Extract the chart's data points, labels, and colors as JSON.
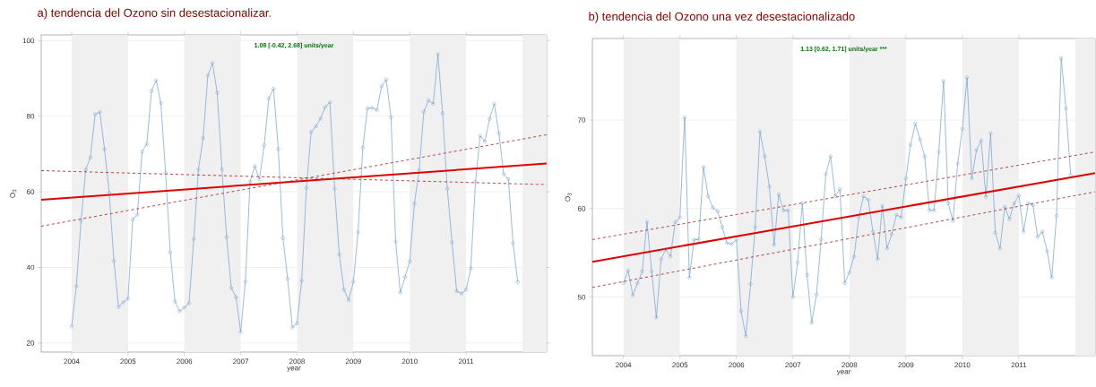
{
  "chart_data": [
    {
      "type": "line",
      "title": "a) tendencia del Ozono sin desestacionalizar.",
      "xlabel": "year",
      "ylabel": "O$_{3}$",
      "annotations": [
        "1.08 [-0.42, 2.68] units/year"
      ],
      "xlim": [
        2003.46,
        2012.43
      ],
      "ylim": [
        17.6,
        101.5
      ],
      "xticks": [
        2004,
        2005,
        2006,
        2007,
        2008,
        2009,
        2010,
        2011
      ],
      "yticks": [
        20,
        40,
        60,
        80,
        100
      ],
      "grid": "y",
      "bands": [
        {
          "axis": "x",
          "from": 2004,
          "to": 2005,
          "color": "#f0f0f0"
        },
        {
          "axis": "x",
          "from": 2006,
          "to": 2007,
          "color": "#f0f0f0"
        },
        {
          "axis": "x",
          "from": 2008,
          "to": 2009,
          "color": "#f0f0f0"
        },
        {
          "axis": "x",
          "from": 2010,
          "to": 2011,
          "color": "#f0f0f0"
        },
        {
          "axis": "x",
          "from": 2012,
          "to": 2012.43,
          "color": "#f0f0f0"
        }
      ],
      "series": [
        {
          "color": "#6f9fcf",
          "marker": "circle",
          "line_style": "solid",
          "x": [
            2004.0,
            2004.083,
            2004.167,
            2004.25,
            2004.333,
            2004.417,
            2004.5,
            2004.583,
            2004.667,
            2004.75,
            2004.833,
            2004.917,
            2005.0,
            2005.083,
            2005.167,
            2005.25,
            2005.333,
            2005.417,
            2005.5,
            2005.583,
            2005.667,
            2005.75,
            2005.833,
            2005.917,
            2006.0,
            2006.083,
            2006.167,
            2006.25,
            2006.333,
            2006.417,
            2006.5,
            2006.583,
            2006.667,
            2006.75,
            2006.833,
            2006.917,
            2007.0,
            2007.083,
            2007.167,
            2007.25,
            2007.333,
            2007.417,
            2007.5,
            2007.583,
            2007.667,
            2007.75,
            2007.833,
            2007.917,
            2008.0,
            2008.083,
            2008.167,
            2008.25,
            2008.333,
            2008.417,
            2008.5,
            2008.583,
            2008.667,
            2008.75,
            2008.833,
            2008.917,
            2009.0,
            2009.083,
            2009.167,
            2009.25,
            2009.333,
            2009.417,
            2009.5,
            2009.583,
            2009.667,
            2009.75,
            2009.833,
            2009.917,
            2010.0,
            2010.083,
            2010.167,
            2010.25,
            2010.333,
            2010.417,
            2010.5,
            2010.583,
            2010.667,
            2010.75,
            2010.833,
            2010.917,
            2011.0,
            2011.083,
            2011.167,
            2011.25,
            2011.333,
            2011.417,
            2011.5,
            2011.583,
            2011.667,
            2011.75,
            2011.833,
            2011.917
          ],
          "values": [
            24.4,
            35,
            52.3,
            65.9,
            69.1,
            80.5,
            81.1,
            71.3,
            59.7,
            41.7,
            29.5,
            30.8,
            31.7,
            52.7,
            54,
            70.6,
            72.6,
            86.7,
            89.5,
            83.5,
            65,
            44,
            31,
            28.4,
            29.4,
            30.5,
            47.5,
            65.9,
            74.2,
            90.8,
            94.1,
            86.2,
            66,
            48,
            34.6,
            32.1,
            22.9,
            36.2,
            62.7,
            66.8,
            63.3,
            72.3,
            84.7,
            87.3,
            71.3,
            47.8,
            37,
            24.1,
            25.2,
            36.5,
            61,
            75.8,
            77.3,
            79.4,
            82.4,
            83.7,
            60.8,
            43.4,
            34.1,
            31.3,
            36.2,
            49.3,
            71.7,
            82.1,
            82.2,
            81.6,
            87.9,
            89.7,
            79.7,
            46.8,
            33.3,
            37.5,
            41.6,
            56.9,
            65.7,
            81.2,
            84.2,
            83.3,
            96.4,
            80.8,
            60.8,
            46.6,
            33.7,
            33.1,
            34.1,
            39.7,
            62.7,
            74.8,
            73.3,
            79.3,
            83.3,
            75.5,
            64.7,
            63.4,
            46.4,
            36.1
          ]
        },
        {
          "color": "#e00000",
          "marker": "none",
          "line_style": "solid",
          "x": [
            2003.46,
            2012.43
          ],
          "values": [
            57.9,
            67.5
          ]
        },
        {
          "color": "#b03030",
          "marker": "none",
          "line_style": "dashed",
          "x": [
            2003.46,
            2012.43
          ],
          "values": [
            65.6,
            61.9
          ]
        },
        {
          "color": "#b03030",
          "marker": "none",
          "line_style": "dashed",
          "x": [
            2003.46,
            2012.43
          ],
          "values": [
            50.9,
            75.1
          ]
        }
      ]
    },
    {
      "type": "line",
      "title": "b) tendencia del Ozono una vez desestacionalizado",
      "xlabel": "year",
      "ylabel": "O$_{3}$",
      "annotations": [
        "1.13 [0.62, 1.71] units/year ***"
      ],
      "xlim": [
        2003.45,
        2012.35
      ],
      "ylim": [
        43.4,
        79.2
      ],
      "xticks": [
        2004,
        2005,
        2006,
        2007,
        2008,
        2009,
        2010,
        2011
      ],
      "yticks": [
        50,
        60,
        70
      ],
      "grid": "y",
      "bands": [
        {
          "axis": "x",
          "from": 2004,
          "to": 2005,
          "color": "#f0f0f0"
        },
        {
          "axis": "x",
          "from": 2006,
          "to": 2007,
          "color": "#f0f0f0"
        },
        {
          "axis": "x",
          "from": 2008,
          "to": 2009,
          "color": "#f0f0f0"
        },
        {
          "axis": "x",
          "from": 2010,
          "to": 2011,
          "color": "#f0f0f0"
        },
        {
          "axis": "x",
          "from": 2012,
          "to": 2012.35,
          "color": "#f0f0f0"
        }
      ],
      "series": [
        {
          "color": "#6f9fcf",
          "marker": "circle",
          "line_style": "solid",
          "x": [
            2004.0,
            2004.083,
            2004.167,
            2004.25,
            2004.333,
            2004.417,
            2004.5,
            2004.583,
            2004.667,
            2004.75,
            2004.833,
            2004.917,
            2005.0,
            2005.083,
            2005.167,
            2005.25,
            2005.333,
            2005.417,
            2005.5,
            2005.583,
            2005.667,
            2005.75,
            2005.833,
            2005.917,
            2006.0,
            2006.083,
            2006.167,
            2006.25,
            2006.333,
            2006.417,
            2006.5,
            2006.583,
            2006.667,
            2006.75,
            2006.833,
            2006.917,
            2007.0,
            2007.083,
            2007.167,
            2007.25,
            2007.333,
            2007.417,
            2007.5,
            2007.583,
            2007.667,
            2007.75,
            2007.833,
            2007.917,
            2008.0,
            2008.083,
            2008.167,
            2008.25,
            2008.333,
            2008.417,
            2008.5,
            2008.583,
            2008.667,
            2008.75,
            2008.833,
            2008.917,
            2009.0,
            2009.083,
            2009.167,
            2009.25,
            2009.333,
            2009.417,
            2009.5,
            2009.583,
            2009.667,
            2009.75,
            2009.833,
            2009.917,
            2010.0,
            2010.083,
            2010.167,
            2010.25,
            2010.333,
            2010.417,
            2010.5,
            2010.583,
            2010.667,
            2010.75,
            2010.833,
            2010.917,
            2011.0,
            2011.083,
            2011.167,
            2011.25,
            2011.333,
            2011.417,
            2011.5,
            2011.583,
            2011.667,
            2011.75,
            2011.833,
            2011.917
          ],
          "values": [
            51.6,
            53,
            50.2,
            51.6,
            52.9,
            58.5,
            52.9,
            47.7,
            54.3,
            55.4,
            54.6,
            58.5,
            59,
            70.3,
            52.2,
            56.5,
            56.5,
            64.7,
            61.4,
            60.1,
            59.7,
            57.9,
            56.1,
            56,
            56.5,
            48.4,
            45.6,
            51.5,
            57.9,
            68.7,
            65.9,
            62.5,
            55.9,
            61.6,
            59.8,
            59.8,
            50,
            53.9,
            60.6,
            52.5,
            47.1,
            50.3,
            56.5,
            63.9,
            65.9,
            61.4,
            62.2,
            51.6,
            52.8,
            54.6,
            59,
            61.4,
            61,
            57.4,
            54.3,
            60.3,
            55.5,
            57.1,
            59.3,
            59,
            63.4,
            67.2,
            69.6,
            67.8,
            65.9,
            59.8,
            59.8,
            66.4,
            74.4,
            60.6,
            58.6,
            65.1,
            69,
            74.8,
            63.4,
            66.6,
            67.7,
            61.3,
            68.5,
            57.3,
            55.5,
            60.2,
            58.8,
            60.6,
            61.5,
            57.4,
            60.6,
            60.4,
            56.8,
            57.4,
            55.2,
            52.2,
            59.2,
            77,
            71.3,
            63.8
          ]
        },
        {
          "color": "#e00000",
          "marker": "none",
          "line_style": "solid",
          "x": [
            2003.45,
            2012.35
          ],
          "values": [
            54.0,
            64.0
          ]
        },
        {
          "color": "#b03030",
          "marker": "none",
          "line_style": "dashed",
          "x": [
            2003.45,
            2012.35
          ],
          "values": [
            56.5,
            66.4
          ]
        },
        {
          "color": "#b03030",
          "marker": "none",
          "line_style": "dashed",
          "x": [
            2003.45,
            2012.35
          ],
          "values": [
            51.1,
            61.9
          ]
        }
      ]
    }
  ]
}
